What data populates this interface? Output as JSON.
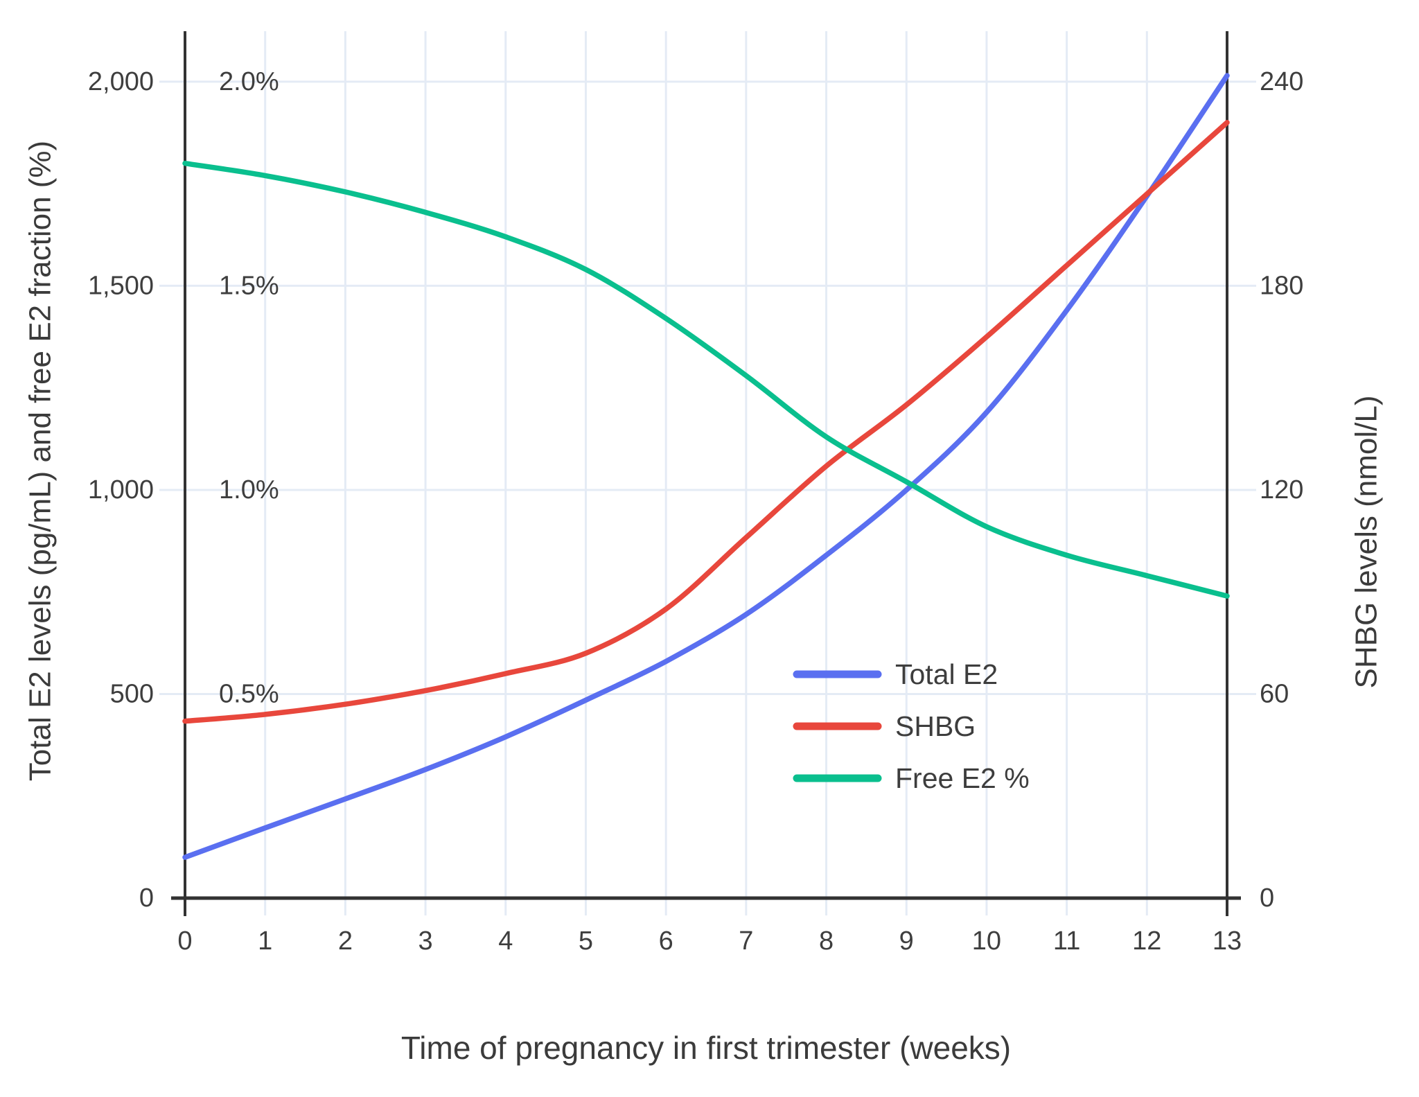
{
  "chart_data": {
    "type": "line",
    "title": "",
    "xlabel": "Time of pregnancy in first trimester (weeks)",
    "ylabel_left": "Total E2 levels (pg/mL) and free E2 fraction (%)",
    "ylabel_right": "SHBG levels (nmol/L)",
    "x": [
      0,
      1,
      2,
      3,
      4,
      5,
      6,
      7,
      8,
      9,
      10,
      11,
      12,
      13
    ],
    "xlim": [
      0,
      13
    ],
    "ylim_left": [
      0,
      2000
    ],
    "ylim_right": [
      0,
      240
    ],
    "grid": true,
    "legend_position": "center-right",
    "x_axis": {
      "ticks": [
        "0",
        "1",
        "2",
        "3",
        "4",
        "5",
        "6",
        "7",
        "8",
        "9",
        "10",
        "11",
        "12",
        "13"
      ]
    },
    "left_axis": {
      "ticks": [
        {
          "v": 0,
          "label": "0"
        },
        {
          "v": 500,
          "label": "500"
        },
        {
          "v": 1000,
          "label": "1,000"
        },
        {
          "v": 1500,
          "label": "1,500"
        },
        {
          "v": 2000,
          "label": "2,000"
        }
      ]
    },
    "percent_labels": [
      {
        "v": 500,
        "label": "0.5%"
      },
      {
        "v": 1000,
        "label": "1.0%"
      },
      {
        "v": 1500,
        "label": "1.5%"
      },
      {
        "v": 2000,
        "label": "2.0%"
      }
    ],
    "right_axis": {
      "ticks": [
        {
          "v": 0,
          "label": "0"
        },
        {
          "v": 60,
          "label": "60"
        },
        {
          "v": 120,
          "label": "120"
        },
        {
          "v": 180,
          "label": "180"
        },
        {
          "v": 240,
          "label": "240"
        }
      ]
    },
    "series": [
      {
        "name": "Total E2",
        "axis": "left",
        "unit": "pg/mL",
        "color": "#5a6ff0",
        "values": [
          100,
          172,
          243,
          315,
          395,
          485,
          580,
          695,
          840,
          1000,
          1190,
          1440,
          1720,
          2015
        ]
      },
      {
        "name": "SHBG",
        "axis": "right",
        "unit": "nmol/L",
        "color": "#e8473c",
        "values": [
          52,
          54,
          57,
          61,
          66,
          72,
          85,
          106,
          127,
          145,
          165,
          186,
          207,
          228
        ]
      },
      {
        "name": "Free E2 %",
        "axis": "percent",
        "unit": "%",
        "color": "#0abf8e",
        "values": [
          1.8,
          1.77,
          1.73,
          1.68,
          1.62,
          1.54,
          1.42,
          1.28,
          1.13,
          1.02,
          0.91,
          0.84,
          0.79,
          0.74
        ]
      }
    ]
  },
  "colors": {
    "background": "#ffffff",
    "gridline": "#e4ebf5",
    "axis_line": "#323232",
    "tick_text": "#3e3e3e",
    "title_text": "#3b3b3b"
  }
}
